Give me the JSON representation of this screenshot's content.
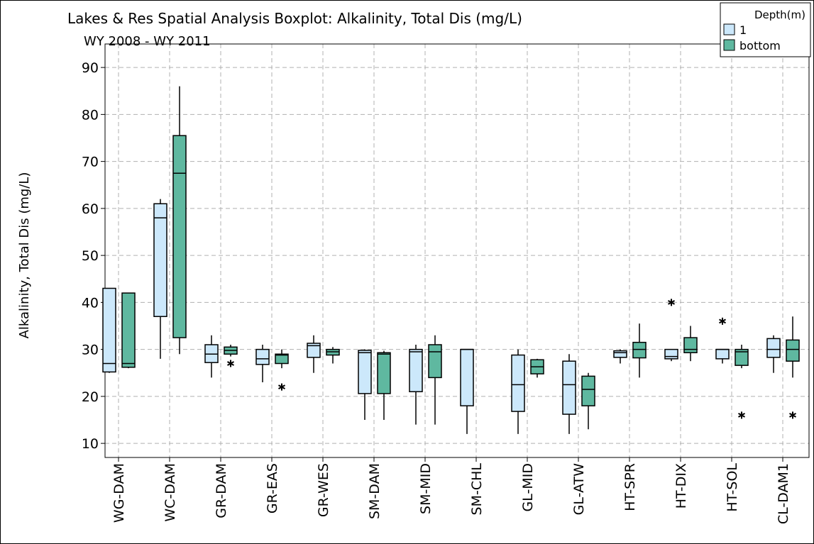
{
  "chart_data": {
    "type": "boxplot",
    "title": "Lakes & Res Spatial Analysis Boxplot: Alkalinity, Total Dis (mg/L)",
    "subtitle": "WY 2008 - WY 2011",
    "y_label": "Alkalinity, Total Dis (mg/L)",
    "legend_title": "Depth(m)",
    "legend_position": "top-right",
    "grid": true,
    "ylim": [
      7,
      95
    ],
    "yticks": [
      10,
      20,
      30,
      40,
      50,
      60,
      70,
      80,
      90
    ],
    "categories": [
      "WG-DAM",
      "WC-DAM",
      "GR-DAM",
      "GR-EAS",
      "GR-WES",
      "SM-DAM",
      "SM-MID",
      "SM-CHL",
      "GL-MID",
      "GL-ATW",
      "HT-SPR",
      "HT-DIX",
      "HT-SOL",
      "CL-DAM1"
    ],
    "series": [
      {
        "name": "1",
        "color": "#cce8fb",
        "min": [
          25,
          28,
          24,
          23,
          25,
          15,
          14,
          12,
          12,
          12,
          27,
          27.5,
          27,
          25
        ],
        "q1": [
          25.2,
          37,
          27.2,
          26.8,
          28.3,
          20.6,
          21,
          18,
          16.8,
          16.2,
          28.3,
          28,
          28,
          28.3
        ],
        "median": [
          27,
          58,
          29,
          28,
          30.8,
          29.3,
          29.5,
          30,
          22.5,
          22.5,
          29.3,
          28.5,
          30,
          30
        ],
        "q3": [
          43,
          61,
          31,
          30,
          31.3,
          29.8,
          30,
          30,
          28.8,
          27.5,
          29.7,
          30,
          30,
          32.3
        ],
        "max": [
          43,
          62,
          33,
          31,
          33,
          30,
          31,
          30,
          30,
          29,
          30,
          30,
          30,
          33
        ],
        "outliers": [
          [],
          [],
          [],
          [],
          [],
          [],
          [],
          [],
          [],
          [],
          [],
          [
            40
          ],
          [
            36
          ],
          []
        ]
      },
      {
        "name": "bottom",
        "color": "#5fb8a0",
        "min": [
          26,
          29,
          28.5,
          26,
          27,
          15,
          14,
          null,
          24,
          13,
          24,
          27.5,
          26,
          24
        ],
        "q1": [
          26.2,
          32.5,
          29,
          27,
          28.8,
          20.6,
          24,
          null,
          24.8,
          18,
          28.2,
          29.3,
          26.6,
          27.5
        ],
        "median": [
          27,
          67.5,
          29.8,
          28.8,
          29.5,
          29,
          29.5,
          null,
          26.3,
          21.5,
          30,
          30,
          29.5,
          30
        ],
        "q3": [
          42,
          75.5,
          30.5,
          29,
          30,
          29.3,
          31,
          null,
          27.8,
          24.3,
          31.5,
          32.5,
          30,
          32
        ],
        "max": [
          42,
          86,
          31,
          30,
          30.5,
          29.7,
          33,
          null,
          28,
          25,
          35.5,
          35,
          31,
          37
        ],
        "outliers": [
          [],
          [],
          [
            27
          ],
          [
            22
          ],
          [],
          [],
          [],
          [],
          [],
          [],
          [],
          [],
          [
            16
          ],
          [
            16
          ]
        ]
      }
    ]
  }
}
